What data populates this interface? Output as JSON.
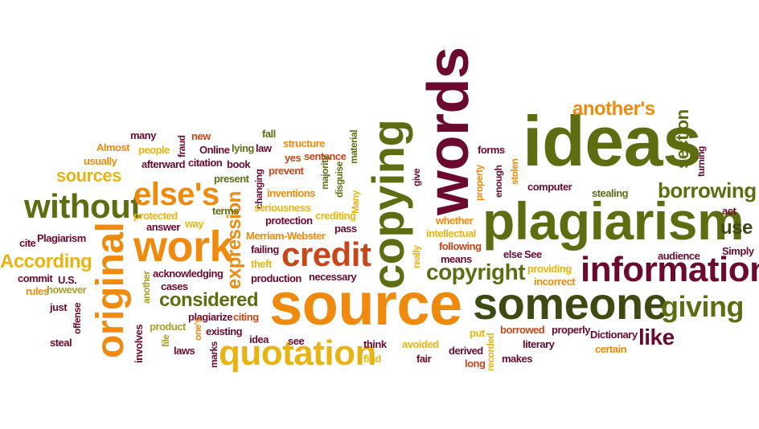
{
  "palette": {
    "maroon": "#6b0a2e",
    "olive": "#5f6d12",
    "orange": "#f08a0f",
    "gold": "#e8b415",
    "rust": "#c7461a",
    "khaki": "#a99f2b",
    "dark_green": "#3d4a12"
  },
  "words": {
    "source": "source",
    "words": "words",
    "ideas": "ideas",
    "plagiarism": "plagiarism",
    "copying": "copying",
    "someone": "someone",
    "information": "information",
    "original": "original",
    "work": "work",
    "quotation": "quotation",
    "credit": "credit",
    "without": "without",
    "elses": "else's",
    "giving": "giving",
    "copyright": "copyright",
    "borrowing": "borrowing",
    "anothers": "another's",
    "expression": "expression",
    "considered": "considered",
    "according": "According",
    "sources": "sources",
    "section": "section",
    "like": "like",
    "use": "use",
    "many": "many",
    "almost": "Almost",
    "usually": "usually",
    "people": "people",
    "fraud": "fraud",
    "new": "new",
    "afterward": "afterward",
    "citation": "citation",
    "online": "Online",
    "lying": "lying",
    "law": "law",
    "book": "book",
    "fall": "fall",
    "structure": "structure",
    "yes": "yes",
    "sentence": "sentence",
    "prevent": "prevent",
    "material": "material",
    "majority": "majority",
    "disguise": "disguise",
    "many_cap": "Many",
    "changing": "changing",
    "present": "present",
    "inventions": "inventions",
    "seriousness": "seriousness",
    "protection": "protection",
    "crediting": "crediting",
    "pass": "pass",
    "terms": "terms",
    "way": "way",
    "protected": "protected",
    "answer": "answer",
    "merriam_webster": "Merriam-Webster",
    "failing": "failing",
    "theft": "theft",
    "production": "production",
    "necessary": "necessary",
    "acknowledging": "acknowledging",
    "cases": "cases",
    "another": "another",
    "plagiarize": "plagiarize",
    "citing": "citing",
    "existing": "existing",
    "product": "product",
    "involves": "involves",
    "file": "file",
    "laws": "laws",
    "marks": "marks",
    "ones": "one's",
    "idea": "idea",
    "see": "see",
    "think": "think",
    "find": "find",
    "avoided": "avoided",
    "fair": "fair",
    "derived": "derived",
    "long": "long",
    "recorded": "recorded",
    "put": "put",
    "borrowed": "borrowed",
    "properly": "properly",
    "literary": "literary",
    "makes": "makes",
    "dictionary": "Dictionary",
    "certain": "certain",
    "cite": "cite",
    "plagiarism_cap": "Plagiarism",
    "commit": "commit",
    "us": "U.S.",
    "rules": "rules",
    "however": "however",
    "just": "just",
    "offense": "offense",
    "steal": "steal",
    "give": "give",
    "really": "really",
    "whether": "whether",
    "intellectual": "intellectual",
    "following": "following",
    "means": "means",
    "else": "else",
    "see_cap": "See",
    "providing": "providing",
    "incorrect": "incorrect",
    "forms": "forms",
    "property": "property",
    "enough": "enough",
    "stolen": "stolen",
    "computer": "computer",
    "stealing": "stealing",
    "turning": "turning",
    "act": "act",
    "audience": "audience",
    "simply": "Simply"
  }
}
